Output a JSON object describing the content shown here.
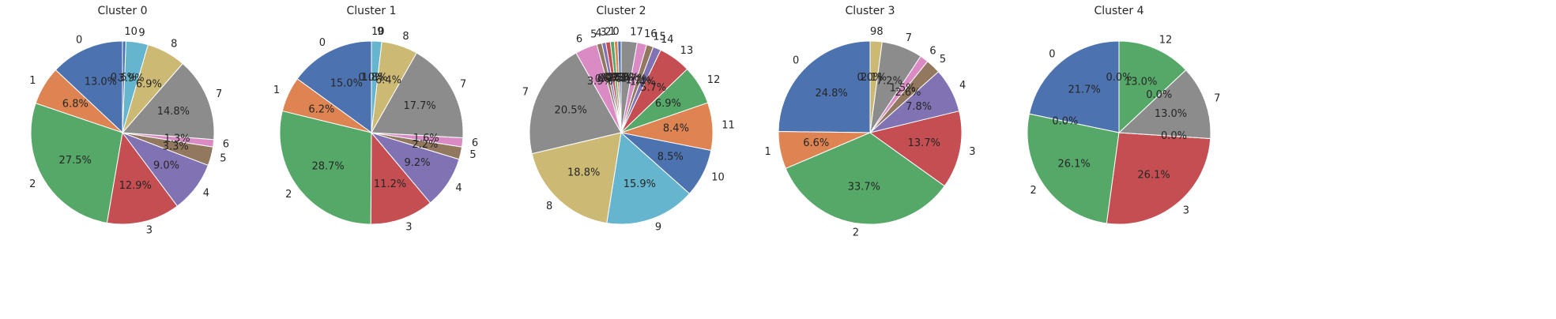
{
  "chart_data": [
    {
      "type": "pie",
      "title": "Cluster 0",
      "categories": [
        "0",
        "1",
        "2",
        "3",
        "4",
        "5",
        "6",
        "7",
        "8",
        "9",
        "10"
      ],
      "values": [
        13.0,
        6.8,
        27.5,
        12.9,
        9.0,
        3.3,
        1.3,
        14.8,
        6.9,
        3.9,
        0.6
      ],
      "value_labels": [
        "13.0%",
        "6.8%",
        "27.5%",
        "12.9%",
        "9.0%",
        "3.3%",
        "1.3%",
        "14.8%",
        "6.9%",
        "3.9%",
        "0.6%"
      ],
      "colors": [
        "#4C72B0",
        "#DD8452",
        "#55A868",
        "#C44E52",
        "#8172B3",
        "#937860",
        "#DA8BC3",
        "#8C8C8C",
        "#CCB974",
        "#64B5CD",
        "#4C72B0"
      ]
    },
    {
      "type": "pie",
      "title": "Cluster 1",
      "categories": [
        "0",
        "1",
        "2",
        "3",
        "4",
        "5",
        "6",
        "7",
        "8",
        "9",
        "10"
      ],
      "values": [
        15.0,
        6.2,
        28.7,
        11.2,
        9.2,
        2.2,
        1.6,
        17.7,
        6.4,
        1.8,
        0.0
      ],
      "value_labels": [
        "15.0%",
        "6.2%",
        "28.7%",
        "11.2%",
        "9.2%",
        "2.2%",
        "1.6%",
        "17.7%",
        "6.4%",
        "1.8%",
        "0.0%"
      ],
      "colors": [
        "#4C72B0",
        "#DD8452",
        "#55A868",
        "#C44E52",
        "#8172B3",
        "#937860",
        "#DA8BC3",
        "#8C8C8C",
        "#CCB974",
        "#64B5CD",
        "#4C72B0"
      ]
    },
    {
      "type": "pie",
      "title": "Cluster 2",
      "categories": [
        "0",
        "1",
        "2",
        "3",
        "4",
        "5",
        "6",
        "7",
        "8",
        "9",
        "10",
        "11",
        "12",
        "13",
        "14",
        "15",
        "16",
        "17"
      ],
      "values": [
        0.6,
        0.6,
        0.7,
        0.8,
        0.7,
        0.9,
        3.9,
        20.5,
        18.8,
        15.9,
        8.5,
        8.4,
        6.9,
        5.7,
        1.4,
        1.2,
        1.7,
        2.8
      ],
      "value_labels": [
        "0.6%",
        "0.6%",
        "0.7%",
        "0.8%",
        "0.7%",
        "0.9%",
        "3.9%",
        "20.5%",
        "18.8%",
        "15.9%",
        "8.5%",
        "8.4%",
        "6.9%",
        "5.7%",
        "1.4%",
        "1.2%",
        "1.7%",
        "2.8%"
      ],
      "colors": [
        "#4C72B0",
        "#DD8452",
        "#55A868",
        "#C44E52",
        "#8172B3",
        "#937860",
        "#DA8BC3",
        "#8C8C8C",
        "#CCB974",
        "#64B5CD",
        "#4C72B0",
        "#DD8452",
        "#55A868",
        "#C44E52",
        "#8172B3",
        "#937860",
        "#DA8BC3",
        "#8C8C8C"
      ]
    },
    {
      "type": "pie",
      "title": "Cluster 3",
      "categories": [
        "0",
        "1",
        "2",
        "3",
        "4",
        "5",
        "6",
        "7",
        "8",
        "9"
      ],
      "values": [
        24.8,
        6.6,
        33.7,
        13.7,
        7.8,
        2.6,
        1.5,
        7.2,
        2.1,
        0.0
      ],
      "value_labels": [
        "24.8%",
        "6.6%",
        "33.7%",
        "13.7%",
        "7.8%",
        "2.6%",
        "1.5%",
        "7.2%",
        "2.1%",
        "0.0%"
      ],
      "colors": [
        "#4C72B0",
        "#DD8452",
        "#55A868",
        "#C44E52",
        "#8172B3",
        "#937860",
        "#DA8BC3",
        "#8C8C8C",
        "#CCB974",
        "#64B5CD"
      ]
    },
    {
      "type": "pie",
      "title": "Cluster 4",
      "categories": [
        "0",
        null,
        "2",
        "3",
        null,
        "7",
        null,
        "12",
        null
      ],
      "values": [
        21.7,
        0.0,
        26.1,
        26.1,
        0.0,
        13.0,
        0.0,
        13.0,
        0.0
      ],
      "value_labels": [
        "21.7%",
        "0.0%",
        "26.1%",
        "26.1%",
        "0.0%",
        "13.0%",
        "0.0%",
        "13.0%",
        "0.0%"
      ],
      "colors": [
        "#4C72B0",
        "#DD8452",
        "#55A868",
        "#C44E52",
        "#8172B3",
        "#8C8C8C",
        "#CCB974",
        "#55A868",
        "#C44E52"
      ]
    }
  ]
}
